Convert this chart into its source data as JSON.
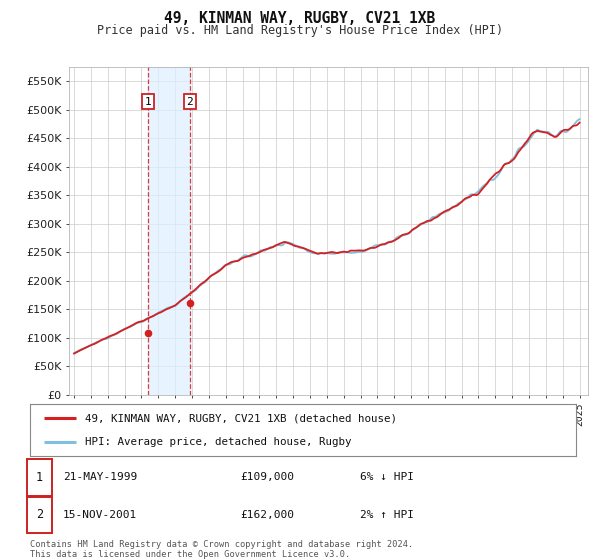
{
  "title": "49, KINMAN WAY, RUGBY, CV21 1XB",
  "subtitle": "Price paid vs. HM Land Registry's House Price Index (HPI)",
  "legend_line1": "49, KINMAN WAY, RUGBY, CV21 1XB (detached house)",
  "legend_line2": "HPI: Average price, detached house, Rugby",
  "transaction1_date": "21-MAY-1999",
  "transaction1_price": "£109,000",
  "transaction1_hpi": "6% ↓ HPI",
  "transaction2_date": "15-NOV-2001",
  "transaction2_price": "£162,000",
  "transaction2_hpi": "2% ↑ HPI",
  "footer": "Contains HM Land Registry data © Crown copyright and database right 2024.\nThis data is licensed under the Open Government Licence v3.0.",
  "hpi_color": "#7fbfdf",
  "price_color": "#d42020",
  "marker_color": "#d42020",
  "vline_color": "#d42020",
  "shade_color": "#ddeeff",
  "grid_color": "#cccccc",
  "background_color": "#ffffff",
  "ylim_min": 0,
  "ylim_max": 575000,
  "yticks": [
    0,
    50000,
    100000,
    150000,
    200000,
    250000,
    300000,
    350000,
    400000,
    450000,
    500000,
    550000
  ],
  "transaction1_year": 1999.38,
  "transaction2_year": 2001.88,
  "xmin": 1994.7,
  "xmax": 2025.5
}
